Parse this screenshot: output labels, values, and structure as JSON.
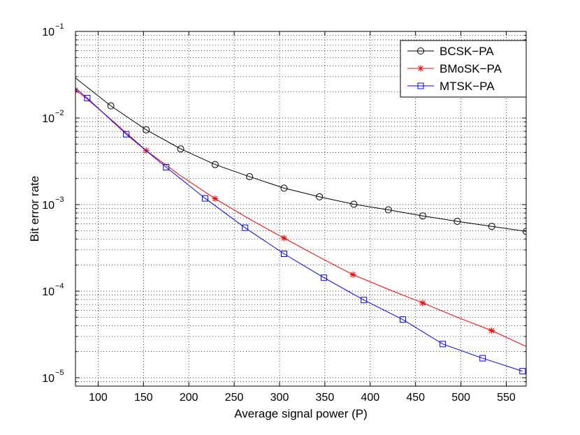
{
  "chart_data": {
    "type": "line",
    "title": "",
    "xlabel": "Average signal power (P)",
    "ylabel": "Bit error rate",
    "xlim": [
      75,
      572
    ],
    "ylim": [
      8e-06,
      0.1
    ],
    "yscale": "log",
    "grid": true,
    "legend_position": "top-right",
    "x_ticks": [
      100,
      150,
      200,
      250,
      300,
      350,
      400,
      450,
      500,
      550
    ],
    "x_tick_labels": [
      "100",
      "150",
      "200",
      "250",
      "300",
      "350",
      "400",
      "450",
      "500",
      "550"
    ],
    "y_ticks": [
      1e-05,
      0.0001,
      0.001,
      0.01,
      0.1
    ],
    "y_tick_labels": [
      {
        "base": "10",
        "exp": "−5"
      },
      {
        "base": "10",
        "exp": "−4"
      },
      {
        "base": "10",
        "exp": "−3"
      },
      {
        "base": "10",
        "exp": "−2"
      },
      {
        "base": "10",
        "exp": "−1"
      }
    ],
    "series": [
      {
        "name": "BCSK−PA",
        "color": "#000000",
        "marker": "circle",
        "x": [
          75,
          114,
          153,
          191,
          229,
          267,
          305,
          344,
          382,
          420,
          458,
          496,
          534,
          572
        ],
        "y": [
          0.029,
          0.0138,
          0.0073,
          0.0044,
          0.0029,
          0.0021,
          0.00155,
          0.00123,
          0.00101,
          0.00087,
          0.00074,
          0.00064,
          0.00056,
          0.00049
        ],
        "marker_indices": [
          1,
          2,
          3,
          4,
          5,
          6,
          7,
          8,
          9,
          10,
          11,
          12,
          13
        ]
      },
      {
        "name": "BMoSK−PA",
        "color": "#ff0000",
        "marker": "star",
        "x": [
          75,
          88,
          110,
          132,
          153,
          191,
          229,
          267,
          305,
          343,
          381,
          420,
          458,
          496,
          534,
          572
        ],
        "y": [
          0.021,
          0.0165,
          0.0105,
          0.0066,
          0.0042,
          0.00215,
          0.00117,
          0.00068,
          0.00041,
          0.00025,
          0.000155,
          0.000105,
          7.3e-05,
          5e-05,
          3.5e-05,
          2.3e-05
        ],
        "marker_indices": [
          0,
          4,
          6,
          8,
          10,
          12,
          14
        ]
      },
      {
        "name": "MTSK−PA",
        "color": "#0000ff",
        "marker": "square",
        "x": [
          75,
          88,
          131,
          175,
          218,
          262,
          305,
          349,
          393,
          436,
          480,
          524,
          568
        ],
        "y": [
          0.022,
          0.017,
          0.0065,
          0.0027,
          0.00118,
          0.00054,
          0.00027,
          0.000143,
          7.9e-05,
          4.7e-05,
          2.45e-05,
          1.68e-05,
          1.19e-05
        ],
        "marker_indices": [
          1,
          2,
          3,
          4,
          5,
          6,
          7,
          8,
          9,
          10,
          11,
          12
        ]
      }
    ]
  }
}
